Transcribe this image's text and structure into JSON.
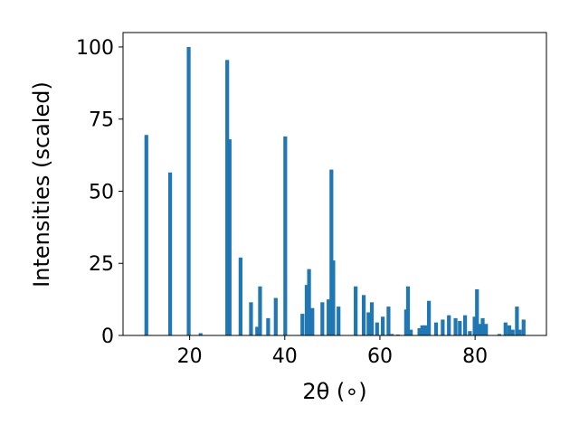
{
  "chart_data": {
    "type": "bar",
    "title": "",
    "xlabel": "2θ (∘)",
    "ylabel": "Intensities (scaled)",
    "xlim": [
      6,
      95
    ],
    "ylim": [
      0,
      105
    ],
    "xticks": [
      20,
      40,
      60,
      80
    ],
    "yticks": [
      0,
      25,
      50,
      75,
      100
    ],
    "grid": false,
    "bar_color": "#1f77b4",
    "bar_width": 0.8,
    "x": [
      10.9,
      15.9,
      19.8,
      22.3,
      27.9,
      28.4,
      30.7,
      32.9,
      34.2,
      34.8,
      36.5,
      38.1,
      40.1,
      43.7,
      44.6,
      45.1,
      45.8,
      47.9,
      49.2,
      49.8,
      50.2,
      51.3,
      54.9,
      56.6,
      57.6,
      58.3,
      59.4,
      60.6,
      61.8,
      62.5,
      63.8,
      65.5,
      65.9,
      66.5,
      68.3,
      68.9,
      69.5,
      70.3,
      71.8,
      73.2,
      74.5,
      75.9,
      76.8,
      77.9,
      78.9,
      79.9,
      80.4,
      80.9,
      81.6,
      82.3,
      85.1,
      86.4,
      87.2,
      87.9,
      88.8,
      89.4,
      90.2
    ],
    "y": [
      69.5,
      56.5,
      100.0,
      0.8,
      95.5,
      68.0,
      27.0,
      11.5,
      3.0,
      17.0,
      6.0,
      13.0,
      69.0,
      7.5,
      17.5,
      23.0,
      9.5,
      11.5,
      12.5,
      57.5,
      26.0,
      10.0,
      17.0,
      14.0,
      8.0,
      11.5,
      4.5,
      6.5,
      10.0,
      0.5,
      0.3,
      9.0,
      17.0,
      2.0,
      2.5,
      3.5,
      3.5,
      12.0,
      4.5,
      5.5,
      7.0,
      6.0,
      5.0,
      7.0,
      1.5,
      6.5,
      16.0,
      4.0,
      6.0,
      4.0,
      0.5,
      4.5,
      3.5,
      2.0,
      10.0,
      2.0,
      5.5
    ]
  }
}
